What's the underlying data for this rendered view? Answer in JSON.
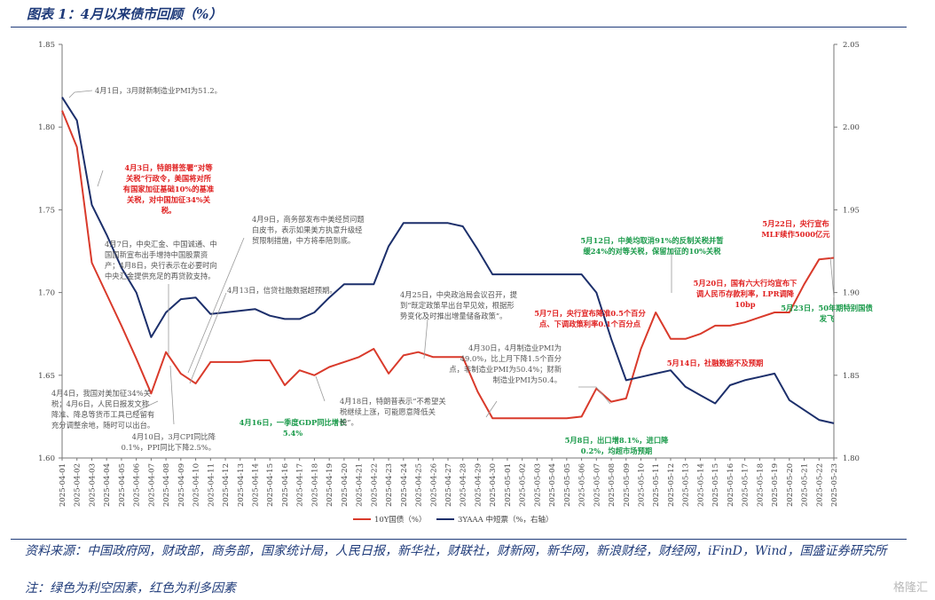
{
  "title": "图表 1：4月以来债市回顾（%）",
  "source": "资料来源：中国政府网，财政部，商务部，国家统计局，人民日报，新华社，财联社，财新网，新华网，新浪财经，财经网，iFinD，Wind，国盛证券研究所",
  "note": "注：绿色为利空因素，红色为利多因素",
  "watermark": "格隆汇",
  "colors": {
    "red_series": "#d93a2b",
    "blue_series": "#1c2f6b",
    "bullish": "#e02020",
    "bearish": "#1a9a4a",
    "neutral": "#555555",
    "header": "#1f3b7a"
  },
  "chart_data": {
    "type": "line",
    "x": [
      "2025-04-01",
      "2025-04-02",
      "2025-04-03",
      "2025-04-04",
      "2025-04-05",
      "2025-04-06",
      "2025-04-07",
      "2025-04-08",
      "2025-04-09",
      "2025-04-10",
      "2025-04-11",
      "2025-04-12",
      "2025-04-13",
      "2025-04-14",
      "2025-04-15",
      "2025-04-16",
      "2025-04-17",
      "2025-04-18",
      "2025-04-19",
      "2025-04-20",
      "2025-04-21",
      "2025-04-22",
      "2025-04-23",
      "2025-04-24",
      "2025-04-25",
      "2025-04-26",
      "2025-04-27",
      "2025-04-28",
      "2025-04-29",
      "2025-04-30",
      "2025-05-01",
      "2025-05-02",
      "2025-05-03",
      "2025-05-04",
      "2025-05-05",
      "2025-05-06",
      "2025-05-07",
      "2025-05-08",
      "2025-05-09",
      "2025-05-10",
      "2025-05-11",
      "2025-05-12",
      "2025-05-13",
      "2025-05-14",
      "2025-05-15",
      "2025-05-16",
      "2025-05-17",
      "2025-05-18",
      "2025-05-19",
      "2025-05-20",
      "2025-05-21",
      "2025-05-22",
      "2025-05-23"
    ],
    "y_left_ticks": [
      "1.60",
      "1.65",
      "1.70",
      "1.75",
      "1.80",
      "1.85"
    ],
    "y_right_ticks": [
      "1.80",
      "1.85",
      "1.90",
      "1.95",
      "2.00",
      "2.05"
    ],
    "ylim_left": [
      1.6,
      1.85
    ],
    "ylim_right": [
      1.8,
      2.05
    ],
    "legend_placement": "bottom",
    "series": [
      {
        "name": "10Y国债（%）",
        "axis": "left",
        "color": "#d93a2b",
        "values": [
          1.81,
          1.788,
          1.718,
          1.699,
          1.68,
          1.66,
          1.639,
          1.664,
          1.651,
          1.645,
          1.658,
          1.658,
          1.658,
          1.659,
          1.659,
          1.644,
          1.653,
          1.65,
          1.655,
          1.658,
          1.661,
          1.666,
          1.651,
          1.662,
          1.664,
          1.661,
          1.661,
          1.661,
          1.64,
          1.624,
          1.624,
          1.624,
          1.624,
          1.624,
          1.624,
          1.625,
          1.642,
          1.634,
          1.636,
          1.666,
          1.688,
          1.672,
          1.672,
          1.675,
          1.68,
          1.68,
          1.682,
          1.685,
          1.688,
          1.688,
          1.705,
          1.72,
          1.721
        ]
      },
      {
        "name": "3YAAA 中短票（%，右轴）",
        "axis": "right",
        "color": "#1c2f6b",
        "values": [
          2.018,
          2.004,
          1.953,
          1.935,
          1.915,
          1.9,
          1.873,
          1.888,
          1.896,
          1.897,
          1.887,
          1.888,
          1.889,
          1.89,
          1.886,
          1.884,
          1.884,
          1.888,
          1.897,
          1.905,
          1.905,
          1.905,
          1.928,
          1.942,
          1.942,
          1.942,
          1.942,
          1.94,
          1.926,
          1.911,
          1.911,
          1.911,
          1.911,
          1.911,
          1.911,
          1.911,
          1.9,
          1.872,
          1.847,
          1.849,
          1.851,
          1.853,
          1.843,
          1.838,
          1.833,
          1.844,
          1.847,
          1.849,
          1.851,
          1.835,
          1.829,
          1.823,
          1.821
        ]
      }
    ],
    "annotations": [
      {
        "tone": "neutral",
        "lines": [
          "4月1日，3月财新制造业PMI为51.2。"
        ]
      },
      {
        "tone": "bullish",
        "lines": [
          "4月3日，特朗普签署“对等",
          "关税”行政令，美国将对所",
          "有国家加征基础10%的基准",
          "关税，对中国加征34%关",
          "税。"
        ]
      },
      {
        "tone": "neutral",
        "lines": [
          "4月7日，中央汇金、中国诚通、中",
          "国国新宣布出手增持中国股票资",
          "产；4月8日，央行表示在必要时向",
          "中央汇金提供充足的再贷款支持。"
        ]
      },
      {
        "tone": "neutral",
        "lines": [
          "4月9日，商务部发布中美经贸问题",
          "白皮书，表示如果美方执意升级经",
          "贸限制措施，中方将奉陪到底。"
        ]
      },
      {
        "tone": "neutral",
        "lines": [
          "4月13日，信贷社融数据超预期。"
        ]
      },
      {
        "tone": "neutral",
        "lines": [
          "4月25日，中央政治局会议召开，提",
          "到“既定政策早出台早见效，根据形",
          "势变化及时推出增量储备政策”。"
        ]
      },
      {
        "tone": "neutral",
        "lines": [
          "4月4日，我国对美加征34%关",
          "税；4月6日，人民日报发文称",
          "降准、降息等货币工具已经留有",
          "充分调整余地，随时可以出台。"
        ]
      },
      {
        "tone": "neutral",
        "lines": [
          "4月10日，3月CPI同比降",
          "0.1%，PPI同比下降2.5%。"
        ]
      },
      {
        "tone": "bearish",
        "lines": [
          "4月16日，一季度GDP同比增长",
          "5.4%"
        ]
      },
      {
        "tone": "neutral",
        "lines": [
          "4月18日，特朗普表示“不希望关",
          "税继续上涨，可能愿意降低关",
          "税”。"
        ]
      },
      {
        "tone": "neutral",
        "lines": [
          "4月30日，4月制造业PMI为",
          "49.0%，比上月下降1.5个百分",
          "点，非制造业PMI为50.4%；财新",
          "制造业PMI为50.4。"
        ]
      },
      {
        "tone": "bullish",
        "lines": [
          "5月7日，央行宣布降准0.5个百分",
          "点、下调政策利率0.1个百分点"
        ]
      },
      {
        "tone": "bearish",
        "lines": [
          "5月8日，出口增8.1%，进口降",
          "0.2%，均超市场预期"
        ]
      },
      {
        "tone": "bearish",
        "lines": [
          "5月12日，中美均取消91%的反制关税并暂",
          "缓24%的对等关税，保留加征的10%关税"
        ]
      },
      {
        "tone": "bullish",
        "lines": [
          "5月14日，社融数据不及预期"
        ]
      },
      {
        "tone": "bullish",
        "lines": [
          "5月20日，国有六大行均宣布下",
          "调人民币存款利率，LPR调降",
          "10bp"
        ]
      },
      {
        "tone": "bullish",
        "lines": [
          "5月22日，央行宣布",
          "MLF续作5000亿元"
        ]
      },
      {
        "tone": "bearish",
        "lines": [
          "5月23日，50年期特别国债",
          "发飞"
        ]
      }
    ]
  }
}
